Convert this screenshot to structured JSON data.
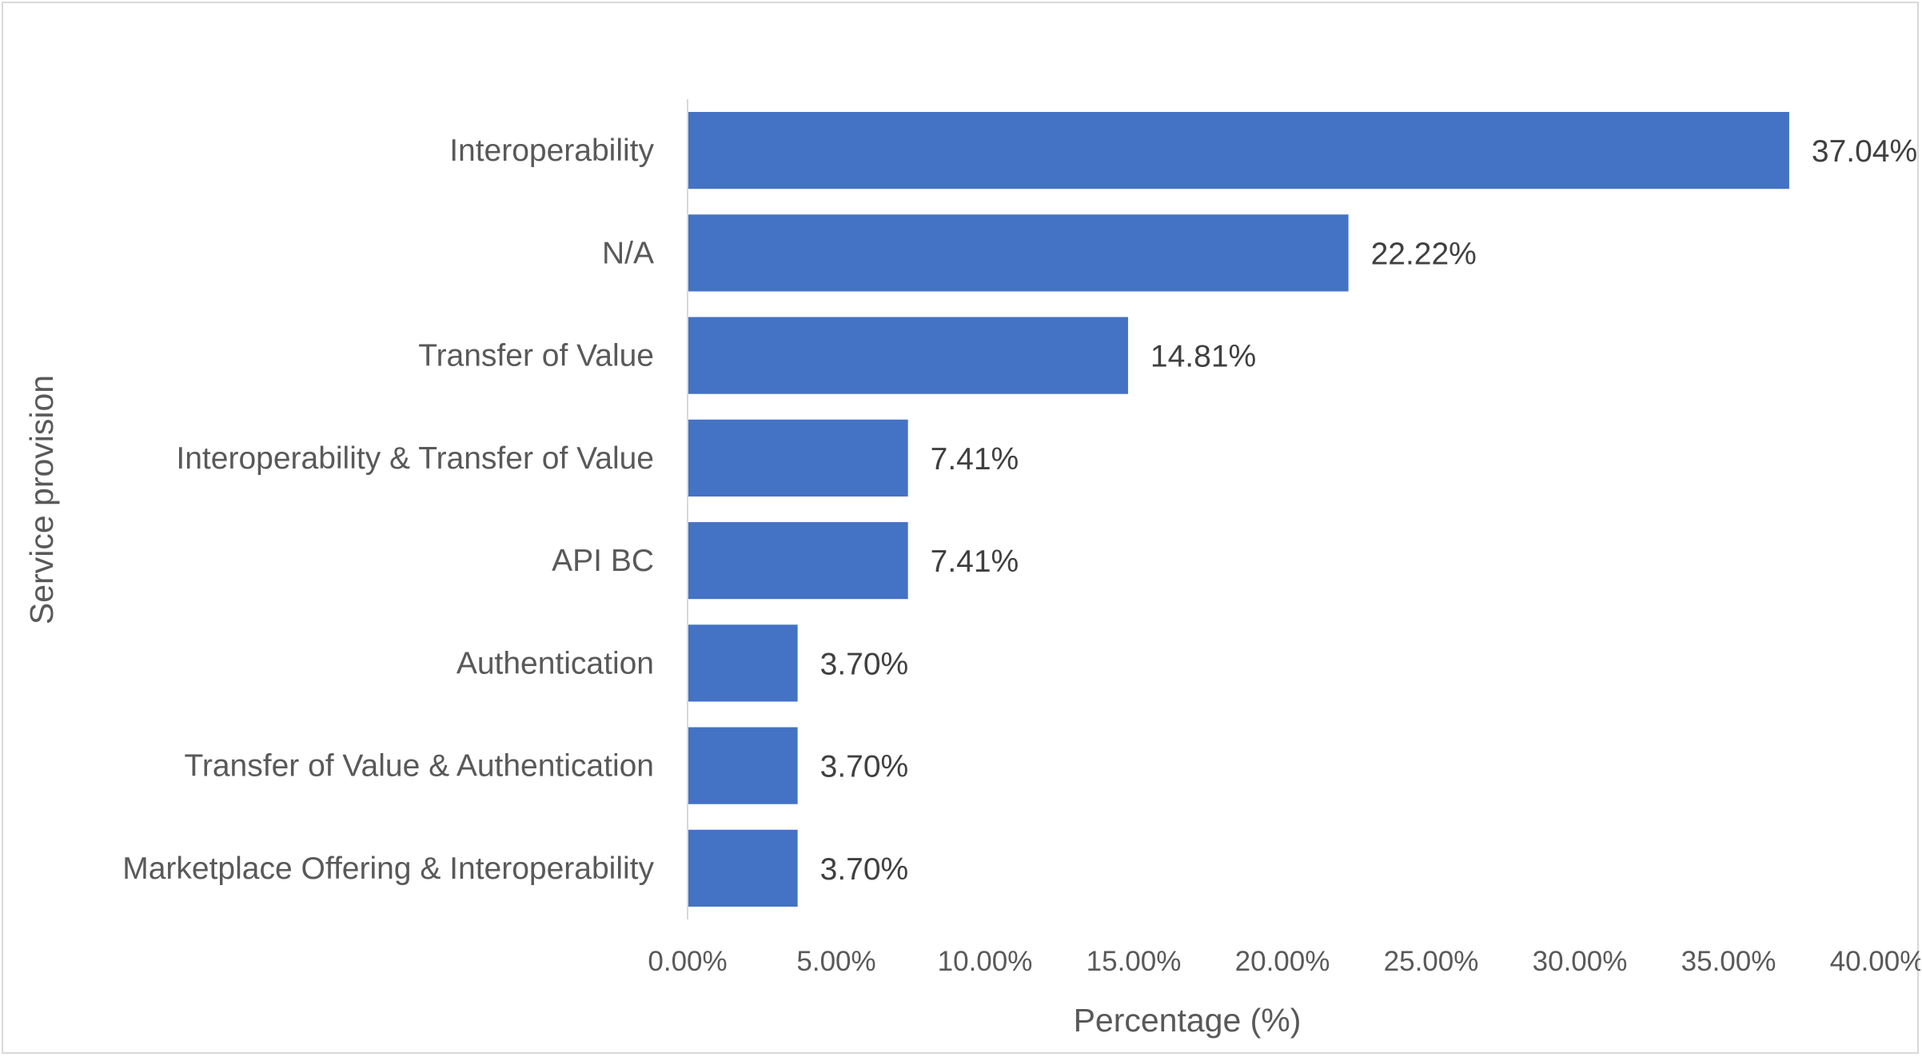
{
  "chart_data": {
    "type": "bar",
    "orientation": "horizontal",
    "categories": [
      "Interoperability",
      "N/A",
      "Transfer of Value",
      "Interoperability & Transfer of Value",
      "API BC",
      "Authentication",
      "Transfer of Value & Authentication",
      "Marketplace Offering & Interoperability"
    ],
    "values": [
      37.04,
      22.22,
      14.81,
      7.41,
      7.41,
      3.7,
      3.7,
      3.7
    ],
    "value_labels": [
      "37.04%",
      "22.22%",
      "14.81%",
      "7.41%",
      "7.41%",
      "3.70%",
      "3.70%",
      "3.70%"
    ],
    "xlabel": "Percentage (%)",
    "ylabel": "Service provision",
    "xlim": [
      0,
      40
    ],
    "x_ticks": [
      "0.00%",
      "5.00%",
      "10.00%",
      "15.00%",
      "20.00%",
      "25.00%",
      "30.00%",
      "35.00%",
      "40.00%"
    ],
    "grid": false,
    "legend": "none",
    "bar_color": "#4472C4"
  }
}
